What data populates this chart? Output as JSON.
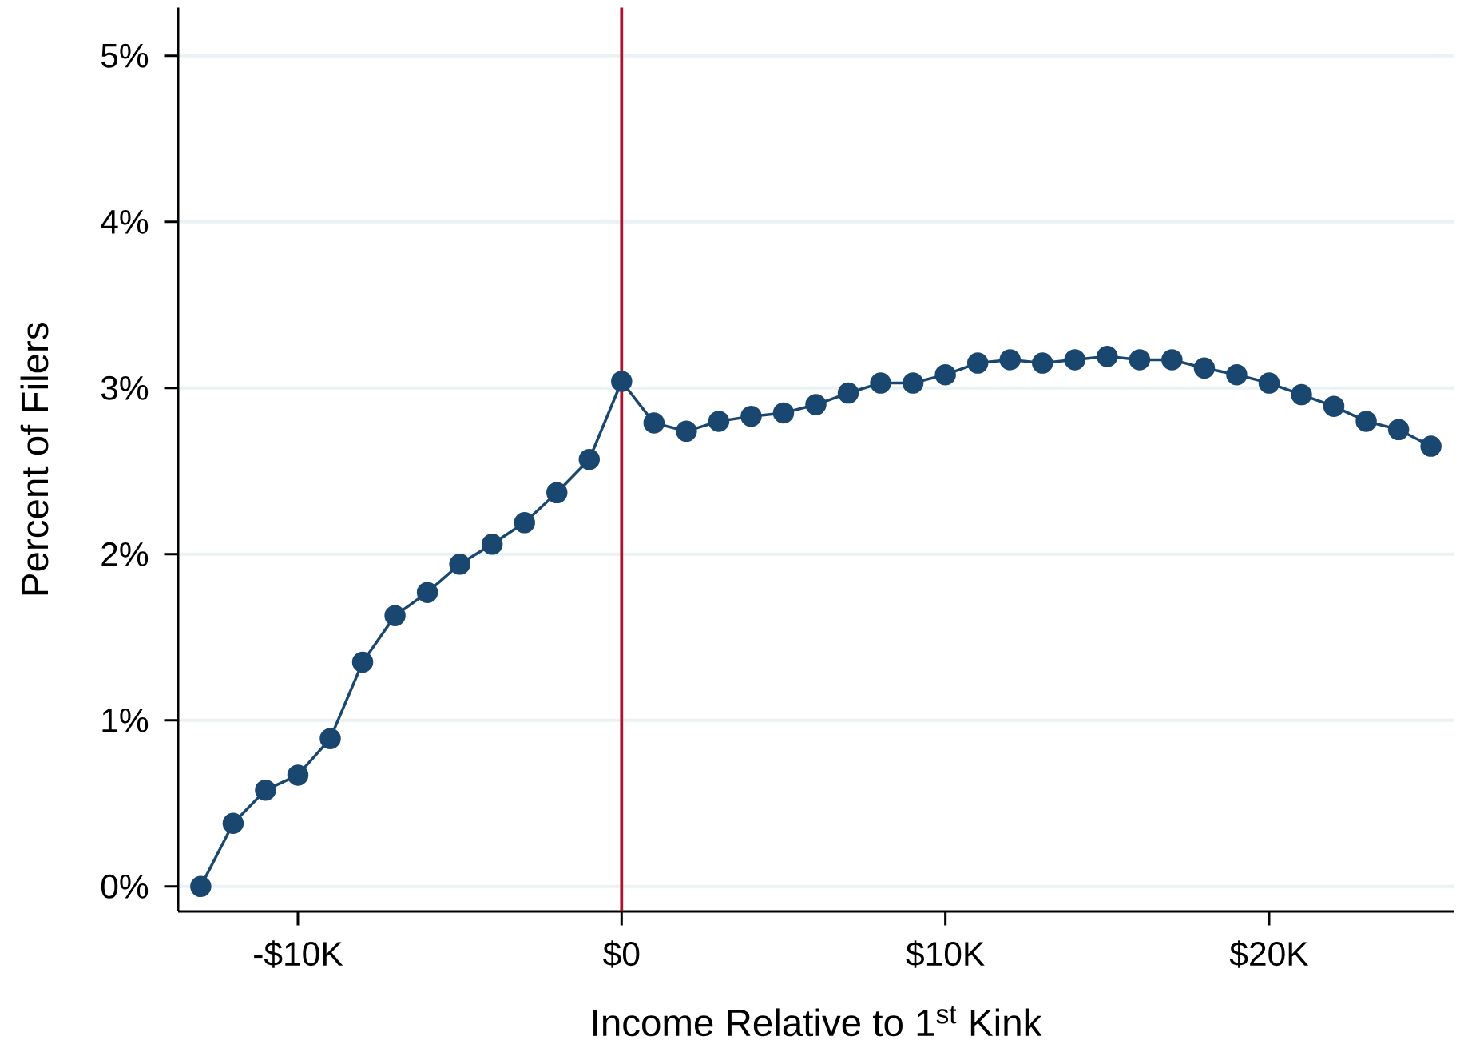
{
  "chart_data": {
    "type": "line",
    "xlabel": "Income Relative to 1$^{st}$ Kink",
    "ylabel": "Percent of Filers",
    "x": [
      -13,
      -12,
      -11,
      -10,
      -9,
      -8,
      -7,
      -6,
      -5,
      -4,
      -3,
      -2,
      -1,
      0,
      1,
      2,
      3,
      4,
      5,
      6,
      7,
      8,
      9,
      10,
      11,
      12,
      13,
      14,
      15,
      16,
      17,
      18,
      19,
      20,
      21,
      22,
      23,
      24,
      25
    ],
    "series": [
      {
        "color": "#1a476f",
        "values": [
          0.0,
          0.38,
          0.58,
          0.67,
          0.89,
          1.35,
          1.63,
          1.77,
          1.94,
          2.06,
          2.19,
          2.37,
          2.57,
          3.04,
          2.79,
          2.74,
          2.8,
          2.83,
          2.85,
          2.9,
          2.97,
          3.03,
          3.03,
          3.08,
          3.15,
          3.17,
          3.15,
          3.17,
          3.19,
          3.17,
          3.17,
          3.12,
          3.08,
          3.03,
          2.96,
          2.89,
          2.8,
          2.75,
          2.65
        ]
      }
    ],
    "xlim": [
      -13.7,
      25.7
    ],
    "ylim": [
      -0.15,
      5.29
    ],
    "xticks": [
      {
        "value": -10,
        "label": "-$10K"
      },
      {
        "value": 0,
        "label": "$0"
      },
      {
        "value": 10,
        "label": "$10K"
      },
      {
        "value": 20,
        "label": "$20K"
      }
    ],
    "yticks": [
      {
        "value": 0,
        "label": "0%"
      },
      {
        "value": 1,
        "label": "1%"
      },
      {
        "value": 2,
        "label": "2%"
      },
      {
        "value": 3,
        "label": "3%"
      },
      {
        "value": 4,
        "label": "4%"
      },
      {
        "value": 5,
        "label": "5%"
      }
    ],
    "grid": "y",
    "marker": "circle",
    "line_style": "solid",
    "ref_lines": [
      {
        "axis": "x",
        "value": 0,
        "color": "#b0112f"
      }
    ]
  }
}
